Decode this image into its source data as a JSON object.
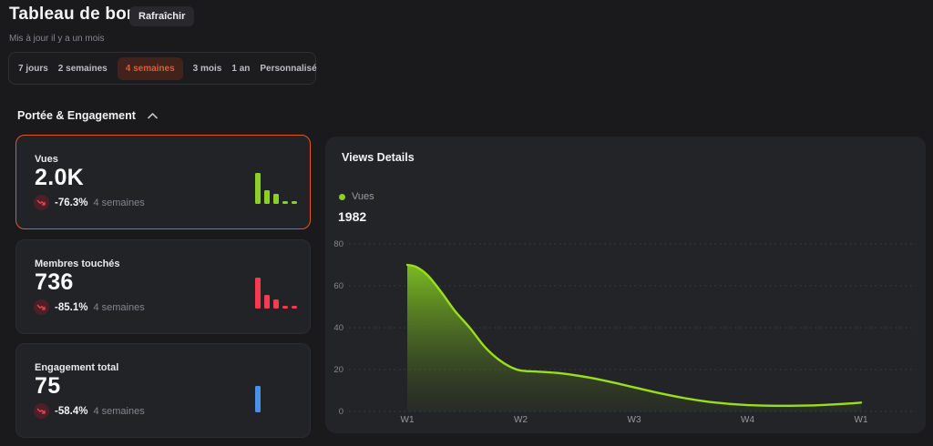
{
  "header": {
    "title": "Tableau de bord",
    "refresh_label": "Rafraîchir",
    "updated": "Mis à jour il y a un mois"
  },
  "tabs": {
    "items": [
      "7 jours",
      "2 semaines",
      "4 semaines",
      "3 mois",
      "1 an",
      "Personnalisé"
    ],
    "selected": "4 semaines"
  },
  "section": {
    "title": "Portée & Engagement"
  },
  "cards": [
    {
      "label": "Vues",
      "value": "2.0K",
      "change": "-76.3%",
      "period": "4 semaines",
      "trend": "down",
      "selected": true,
      "spark": {
        "color": "#8bd125",
        "bars": [
          100,
          45,
          32,
          8,
          8
        ]
      }
    },
    {
      "label": "Membres touchés",
      "value": "736",
      "change": "-85.1%",
      "period": "4 semaines",
      "trend": "down",
      "selected": false,
      "spark": {
        "color": "#f43b4f",
        "bars": [
          100,
          43,
          30,
          8,
          8
        ]
      }
    },
    {
      "label": "Engagement total",
      "value": "75",
      "change": "-58.4%",
      "period": "4 semaines",
      "trend": "down",
      "selected": false,
      "spark": {
        "color": "#4d8fe8",
        "bars": [
          86
        ]
      }
    }
  ],
  "panel": {
    "title": "Views Details",
    "legend": "Vues",
    "value": "1982"
  },
  "chart_data": {
    "type": "area",
    "title": "Views Details",
    "series_name": "Vues",
    "color": "#8bd125",
    "x_ticks": [
      "W1",
      "W2",
      "W3",
      "W4",
      "W1"
    ],
    "y_ticks": [
      0,
      20,
      40,
      60,
      80
    ],
    "ylim": [
      0,
      80
    ],
    "grid": "dotted-horizontal",
    "legend_position": "top-left",
    "values_at_ticks": [
      70,
      19.5,
      11.5,
      3,
      4.2
    ],
    "points": [
      [
        0,
        70
      ],
      [
        0.08,
        69
      ],
      [
        0.18,
        65
      ],
      [
        0.3,
        57
      ],
      [
        0.42,
        48
      ],
      [
        0.55,
        40
      ],
      [
        0.68,
        31
      ],
      [
        0.8,
        25
      ],
      [
        0.9,
        21.5
      ],
      [
        1,
        19.5
      ],
      [
        1.15,
        19
      ],
      [
        1.35,
        18.2
      ],
      [
        1.6,
        16.2
      ],
      [
        1.8,
        14
      ],
      [
        2,
        11.5
      ],
      [
        2.2,
        9
      ],
      [
        2.45,
        6.3
      ],
      [
        2.7,
        4.3
      ],
      [
        3,
        3
      ],
      [
        3.3,
        2.7
      ],
      [
        3.6,
        2.9
      ],
      [
        3.85,
        3.6
      ],
      [
        4,
        4.2
      ]
    ]
  },
  "colors": {
    "accent_orange": "#e0562d",
    "lime": "#8bd125",
    "red": "#f43b4f",
    "blue": "#4d8fe8",
    "badge_bg": "#4e1f28",
    "badge_arrow": "#e5484d"
  }
}
